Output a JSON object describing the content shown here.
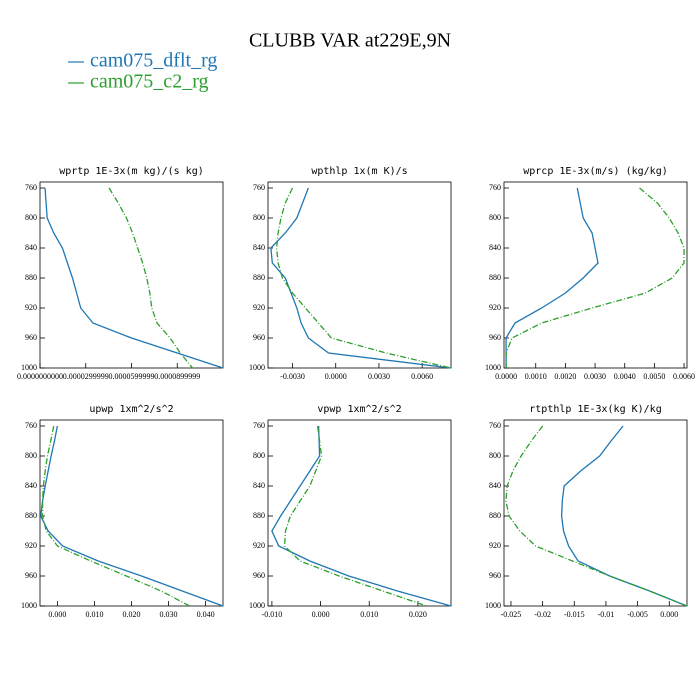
{
  "title": "CLUBB VAR at229E,9N",
  "chart_data": [
    {
      "type": "line",
      "title": "wprtp  1E-3x(m kg)/(s kg)",
      "y": [
        760,
        780,
        800,
        820,
        840,
        860,
        880,
        900,
        920,
        940,
        960,
        980,
        1000
      ],
      "series": [
        {
          "name": "cam075_dflt_rg",
          "color": "#1f77b4",
          "values": [
            3.3e-06,
            4e-06,
            4.7e-06,
            9e-06,
            1.47e-05,
            1.8e-05,
            2.13e-05,
            2.4e-05,
            2.67e-05,
            3.47e-05,
            6e-05,
            9e-05,
            0.00012
          ]
        },
        {
          "name": "cam075_c2_rg",
          "color": "#2ca02c",
          "values": [
            4.53e-05,
            5.13e-05,
            5.67e-05,
            6.07e-05,
            6.4e-05,
            6.73e-05,
            7e-05,
            7.2e-05,
            7.33e-05,
            7.67e-05,
            8.53e-05,
            9.2e-05,
            0.0001
          ]
        }
      ],
      "xlim": [
        0,
        0.00012
      ],
      "xticks": [
        {
          "value": 0,
          "label": "0.0000000000"
        },
        {
          "value": 3e-05,
          "label": "0.0000299999"
        },
        {
          "value": 6e-05,
          "label": "0.0000599999"
        },
        {
          "value": 9e-05,
          "label": "0.0000899999"
        }
      ],
      "ylim": [
        1000,
        752
      ],
      "yticks": [
        760,
        800,
        840,
        880,
        920,
        960,
        1000
      ]
    },
    {
      "type": "line",
      "title": "wpthlp  1x(m K)/s",
      "y": [
        760,
        780,
        800,
        820,
        840,
        860,
        880,
        900,
        920,
        940,
        960,
        980,
        1000
      ],
      "series": [
        {
          "name": "cam075_dflt_rg",
          "color": "#1f77b4",
          "values": [
            -0.0019,
            -0.0023,
            -0.0027,
            -0.0035,
            -0.0045,
            -0.0044,
            -0.0035,
            -0.0031,
            -0.0027,
            -0.0024,
            -0.0019,
            -0.0005,
            0.008
          ]
        },
        {
          "name": "cam075_c2_rg",
          "color": "#2ca02c",
          "values": [
            -0.003,
            -0.0035,
            -0.0038,
            -0.004,
            -0.0041,
            -0.004,
            -0.0037,
            -0.003,
            -0.0021,
            -0.0012,
            -0.0003,
            0.0035,
            0.008
          ]
        }
      ],
      "xlim": [
        -0.0047,
        0.008
      ],
      "xticks": [
        {
          "value": -0.003,
          "label": "-0.0030"
        },
        {
          "value": 0,
          "label": "0.0000"
        },
        {
          "value": 0.003,
          "label": "0.0030"
        },
        {
          "value": 0.006,
          "label": "0.0060"
        }
      ],
      "ylim": [
        1000,
        752
      ],
      "yticks": [
        760,
        800,
        840,
        880,
        920,
        960,
        1000
      ]
    },
    {
      "type": "line",
      "title": "wprcp  1E-3x(m/s) (kg/kg)",
      "y": [
        760,
        780,
        800,
        820,
        840,
        860,
        880,
        900,
        920,
        940,
        960,
        980,
        1000
      ],
      "series": [
        {
          "name": "cam075_dflt_rg",
          "color": "#1f77b4",
          "values": [
            0.0024,
            0.0025,
            0.0026,
            0.0029,
            0.003,
            0.0031,
            0.0026,
            0.002,
            0.0012,
            0.0003,
            0,
            0,
            0
          ]
        },
        {
          "name": "cam075_c2_rg",
          "color": "#2ca02c",
          "values": [
            0.0045,
            0.0051,
            0.0055,
            0.0058,
            0.006,
            0.006,
            0.0056,
            0.0047,
            0.0029,
            0.0012,
            0.0002,
            0,
            0
          ]
        }
      ],
      "xlim": [
        -7e-05,
        0.0061
      ],
      "xticks": [
        {
          "value": 0,
          "label": "0.0000"
        },
        {
          "value": 0.001,
          "label": "0.0010"
        },
        {
          "value": 0.002,
          "label": "0.0020"
        },
        {
          "value": 0.003,
          "label": "0.0030"
        },
        {
          "value": 0.004,
          "label": "0.0040"
        },
        {
          "value": 0.005,
          "label": "0.0050"
        },
        {
          "value": 0.006,
          "label": "0.0060"
        }
      ],
      "ylim": [
        1000,
        752
      ],
      "yticks": [
        760,
        800,
        840,
        880,
        920,
        960,
        1000
      ]
    },
    {
      "type": "line",
      "title": "upwp  1xm^2/s^2",
      "y": [
        760,
        780,
        800,
        820,
        840,
        860,
        880,
        900,
        920,
        940,
        960,
        980,
        1000
      ],
      "series": [
        {
          "name": "cam075_dflt_rg",
          "color": "#1f77b4",
          "values": [
            0,
            -0.0008,
            -0.0017,
            -0.0025,
            -0.0033,
            -0.004,
            -0.0045,
            -0.0025,
            0.0014,
            0.011,
            0.0227,
            0.0337,
            0.0447
          ]
        },
        {
          "name": "cam075_c2_rg",
          "color": "#2ca02c",
          "values": [
            -0.001,
            -0.0018,
            -0.0027,
            -0.0033,
            -0.0038,
            -0.004,
            -0.004,
            -0.003,
            0,
            0.009,
            0.0186,
            0.028,
            0.0357
          ]
        }
      ],
      "xlim": [
        -0.0047,
        0.0447
      ],
      "xticks": [
        {
          "value": 0,
          "label": "0.000"
        },
        {
          "value": 0.01,
          "label": "0.010"
        },
        {
          "value": 0.02,
          "label": "0.020"
        },
        {
          "value": 0.03,
          "label": "0.030"
        },
        {
          "value": 0.04,
          "label": "0.040"
        }
      ],
      "ylim": [
        1000,
        752
      ],
      "yticks": [
        760,
        800,
        840,
        880,
        920,
        960,
        1000
      ]
    },
    {
      "type": "line",
      "title": "vpwp  1xm^2/s^2",
      "y": [
        760,
        780,
        800,
        820,
        840,
        860,
        880,
        900,
        920,
        940,
        960,
        980,
        1000
      ],
      "series": [
        {
          "name": "cam075_dflt_rg",
          "color": "#1f77b4",
          "values": [
            -0.0004,
            -0.0003,
            -0.0002,
            -0.0022,
            -0.0042,
            -0.0062,
            -0.0082,
            -0.01,
            -0.0086,
            -0.0022,
            0.0058,
            0.0158,
            0.0268
          ]
        },
        {
          "name": "cam075_c2_rg",
          "color": "#2ca02c",
          "values": [
            -0.0006,
            -0.0002,
            0.0002,
            -0.001,
            -0.0022,
            -0.0042,
            -0.0062,
            -0.0072,
            -0.0074,
            -0.0042,
            0.0038,
            0.0128,
            0.0218
          ]
        }
      ],
      "xlim": [
        -0.0108,
        0.0268
      ],
      "xticks": [
        {
          "value": -0.01,
          "label": "-0.010"
        },
        {
          "value": 0,
          "label": "0.000"
        },
        {
          "value": 0.01,
          "label": "0.010"
        },
        {
          "value": 0.02,
          "label": "0.020"
        }
      ],
      "ylim": [
        1000,
        752
      ],
      "yticks": [
        760,
        800,
        840,
        880,
        920,
        960,
        1000
      ]
    },
    {
      "type": "line",
      "title": "rtpthlp  1E-3x(kg K)/kg",
      "y": [
        760,
        780,
        800,
        820,
        840,
        860,
        880,
        900,
        920,
        940,
        960,
        980,
        1000
      ],
      "series": [
        {
          "name": "cam075_dflt_rg",
          "color": "#1f77b4",
          "values": [
            -0.0073,
            -0.0092,
            -0.011,
            -0.014,
            -0.0166,
            -0.0169,
            -0.017,
            -0.0167,
            -0.0159,
            -0.0144,
            -0.0094,
            -0.0031,
            0.0028
          ]
        },
        {
          "name": "cam075_c2_rg",
          "color": "#2ca02c",
          "values": [
            -0.02,
            -0.0218,
            -0.0234,
            -0.0247,
            -0.0256,
            -0.0258,
            -0.0253,
            -0.0236,
            -0.0211,
            -0.0153,
            -0.0094,
            -0.0031,
            0.0028
          ]
        }
      ],
      "xlim": [
        -0.0261,
        0.0028
      ],
      "xticks": [
        -0.025,
        -0.02,
        -0.015,
        -0.01,
        -0.005,
        {
          "value": 0,
          "label": "0.000"
        }
      ],
      "ylim": [
        1000,
        752
      ],
      "yticks": [
        760,
        800,
        840,
        880,
        920,
        960,
        1000
      ]
    }
  ]
}
